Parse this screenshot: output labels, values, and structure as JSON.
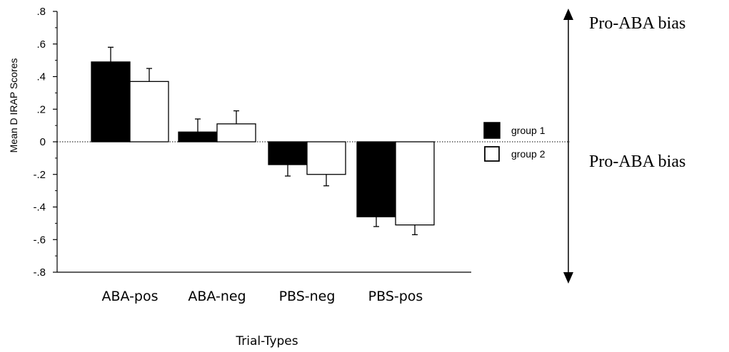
{
  "chart_data": {
    "type": "bar",
    "ylabel": "Mean D IRAP Scores",
    "xlabel": "Trial-Types",
    "ylim": [
      -0.8,
      0.8
    ],
    "yticks": [
      ".8",
      ".6",
      ".4",
      ".2",
      "0",
      "-.2",
      "-.4",
      "-.6",
      "-.8"
    ],
    "categories": [
      "ABA-pos",
      "ABA-neg",
      "PBS-neg",
      "PBS-pos"
    ],
    "series": [
      {
        "name": "group 1",
        "color": "#000000",
        "values": [
          0.49,
          0.06,
          -0.14,
          -0.46
        ],
        "errors": [
          0.09,
          0.08,
          0.07,
          0.06
        ]
      },
      {
        "name": "group 2",
        "color": "#ffffff",
        "values": [
          0.37,
          0.11,
          -0.2,
          -0.51
        ],
        "errors": [
          0.08,
          0.08,
          0.07,
          0.06
        ]
      }
    ],
    "legend_position": "right",
    "zero_line": "dotted",
    "annotations": [
      "Pro-ABA bias",
      "Pro-ABA bias"
    ]
  }
}
